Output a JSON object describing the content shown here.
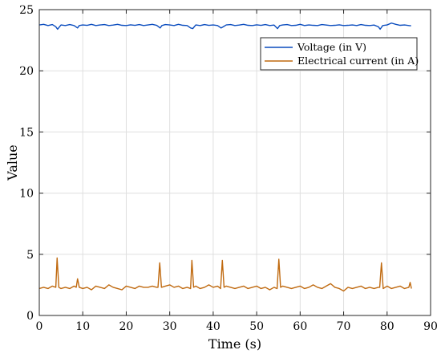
{
  "chart_data": {
    "type": "line",
    "xlabel": "Time (s)",
    "ylabel": "Value",
    "xlim": [
      0,
      90
    ],
    "ylim": [
      0,
      25
    ],
    "xticks": [
      0,
      10,
      20,
      30,
      40,
      50,
      60,
      70,
      80,
      90
    ],
    "yticks": [
      0,
      5,
      10,
      15,
      20,
      25
    ],
    "grid": true,
    "legend_position": "top-right",
    "series": [
      {
        "name": "Voltage (in V)",
        "color": "#0a4cbe",
        "x": [
          0,
          1,
          2,
          3,
          3.8,
          4.2,
          5,
          6,
          7,
          8,
          8.8,
          9.2,
          10,
          11,
          12,
          13,
          14,
          15,
          16,
          17,
          18,
          19,
          20,
          21,
          22,
          23,
          24,
          25,
          26,
          27,
          27.8,
          28.2,
          29,
          30,
          31,
          32,
          33,
          34,
          34.8,
          35.3,
          36,
          37,
          38,
          39,
          40,
          41,
          41.8,
          42.3,
          43,
          44,
          45,
          46,
          47,
          48,
          49,
          50,
          51,
          52,
          53,
          54,
          54.8,
          55.3,
          56,
          57,
          58,
          59,
          60,
          61,
          62,
          63,
          64,
          65,
          66,
          67,
          68,
          69,
          70,
          71,
          72,
          73,
          74,
          75,
          76,
          77,
          78,
          78.4,
          79,
          80,
          81,
          82,
          83,
          84,
          85,
          85.5
        ],
        "y": [
          23.75,
          23.8,
          23.7,
          23.78,
          23.6,
          23.4,
          23.75,
          23.7,
          23.78,
          23.7,
          23.5,
          23.7,
          23.75,
          23.72,
          23.8,
          23.7,
          23.75,
          23.78,
          23.7,
          23.74,
          23.8,
          23.72,
          23.7,
          23.76,
          23.72,
          23.78,
          23.7,
          23.75,
          23.8,
          23.72,
          23.5,
          23.7,
          23.78,
          23.75,
          23.7,
          23.8,
          23.72,
          23.7,
          23.5,
          23.45,
          23.75,
          23.7,
          23.78,
          23.72,
          23.75,
          23.7,
          23.5,
          23.6,
          23.75,
          23.78,
          23.7,
          23.74,
          23.8,
          23.72,
          23.7,
          23.76,
          23.72,
          23.78,
          23.7,
          23.74,
          23.45,
          23.7,
          23.75,
          23.78,
          23.7,
          23.72,
          23.8,
          23.7,
          23.75,
          23.72,
          23.7,
          23.78,
          23.74,
          23.7,
          23.72,
          23.76,
          23.7,
          23.72,
          23.75,
          23.7,
          23.78,
          23.72,
          23.7,
          23.74,
          23.6,
          23.4,
          23.7,
          23.75,
          23.9,
          23.8,
          23.72,
          23.75,
          23.7,
          23.68
        ]
      },
      {
        "name": "Electrical current (in A)",
        "color": "#c06a10",
        "x": [
          0,
          1,
          2,
          3,
          3.8,
          4.1,
          4.5,
          5,
          6,
          7,
          8,
          8.5,
          8.8,
          9.2,
          10,
          11,
          12,
          13,
          14,
          15,
          16,
          17,
          18,
          19,
          20,
          21,
          22,
          23,
          24,
          25,
          26,
          27,
          27.3,
          27.7,
          28.1,
          29,
          30,
          31,
          32,
          33,
          34,
          34.8,
          35.1,
          35.5,
          36,
          37,
          38,
          39,
          40,
          41,
          41.7,
          42.1,
          42.5,
          43,
          44,
          45,
          46,
          47,
          48,
          49,
          50,
          51,
          52,
          53,
          54,
          54.7,
          55.1,
          55.5,
          56,
          57,
          58,
          59,
          60,
          61,
          62,
          63,
          64,
          65,
          66,
          67,
          68,
          69,
          70,
          71,
          72,
          73,
          74,
          75,
          76,
          77,
          78,
          78.3,
          78.7,
          79.1,
          80,
          81,
          82,
          83,
          84,
          85,
          85.3,
          85.6
        ],
        "y": [
          2.2,
          2.3,
          2.2,
          2.4,
          2.3,
          4.7,
          2.3,
          2.2,
          2.3,
          2.2,
          2.4,
          2.3,
          3.0,
          2.3,
          2.2,
          2.3,
          2.1,
          2.4,
          2.3,
          2.2,
          2.5,
          2.3,
          2.2,
          2.1,
          2.4,
          2.3,
          2.2,
          2.4,
          2.3,
          2.3,
          2.4,
          2.3,
          2.3,
          4.3,
          2.3,
          2.4,
          2.5,
          2.3,
          2.4,
          2.2,
          2.3,
          2.2,
          4.5,
          2.3,
          2.4,
          2.2,
          2.3,
          2.5,
          2.3,
          2.4,
          2.2,
          4.5,
          2.3,
          2.4,
          2.3,
          2.2,
          2.3,
          2.4,
          2.2,
          2.3,
          2.4,
          2.2,
          2.3,
          2.1,
          2.3,
          2.2,
          4.6,
          2.3,
          2.4,
          2.3,
          2.2,
          2.3,
          2.4,
          2.2,
          2.3,
          2.5,
          2.3,
          2.2,
          2.4,
          2.6,
          2.3,
          2.2,
          2.0,
          2.3,
          2.2,
          2.3,
          2.4,
          2.2,
          2.3,
          2.2,
          2.3,
          2.3,
          4.3,
          2.2,
          2.4,
          2.2,
          2.3,
          2.4,
          2.2,
          2.3,
          2.7,
          2.2
        ]
      }
    ]
  }
}
